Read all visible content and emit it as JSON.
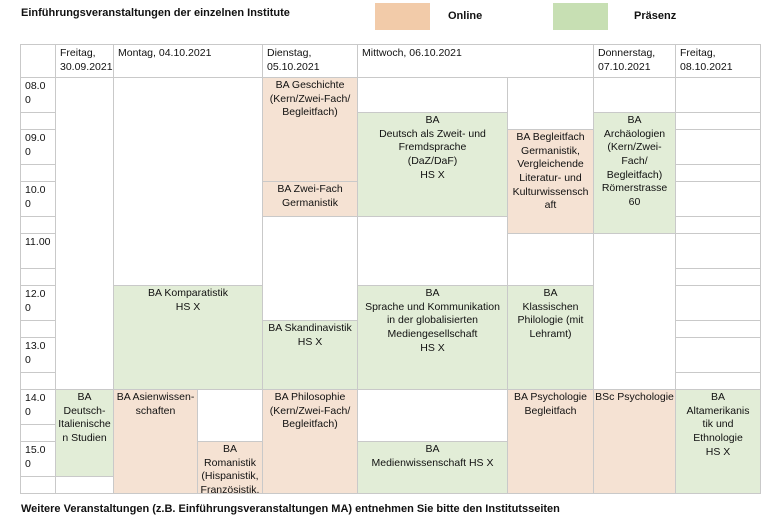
{
  "title": "Einführungsveranstaltungen der einzelnen Institute",
  "footer": "Weitere Veranstaltungen (z.B. Einführungsveranstaltungen MA) entnehmen Sie bitte den Institutsseiten",
  "legend": {
    "online_label": "Online",
    "praesenz_label": "Präsenz"
  },
  "colors": {
    "legend_online": "#F2CBA9",
    "legend_praesenz": "#C7DFB3",
    "online_cell": "#F5E2D3",
    "praesenz_cell": "#E2EDD7",
    "grid": "#C9C9C9"
  },
  "time_rows": [
    "08.00",
    "09.00",
    "10.00",
    "11.00",
    "12.00",
    "13.00",
    "14.00",
    "15.00"
  ],
  "columns": [
    {
      "label": "Freitag, 30.09.2021",
      "span": 1
    },
    {
      "label": "Montag, 04.10.2021",
      "span": 2
    },
    {
      "label": "Dienstag, 05.10.2021",
      "span": 1
    },
    {
      "label": "Mittwoch, 06.10.2021",
      "span": 2
    },
    {
      "label": "Donnerstag, 07.10.2021",
      "span": 1
    },
    {
      "label": "Freitag, 08.10.2021",
      "span": 1
    }
  ],
  "events": [
    {
      "label": "BA Geschichte\n(Kern/Zwei-Fach/\nBegleitfach)",
      "mode": "online",
      "col": 5,
      "colspan": 1,
      "row": 0,
      "rowspan": 4
    },
    {
      "label": "BA Zwei-Fach\nGermanistik",
      "mode": "online",
      "col": 5,
      "colspan": 1,
      "row": 4,
      "rowspan": 1
    },
    {
      "label": "BA Skandinavistik\nHS X",
      "mode": "praesenz",
      "col": 5,
      "colspan": 1,
      "row": 9,
      "rowspan": 3
    },
    {
      "label": "BA Philosophie\n(Kern/Zwei-Fach/\nBegleitfach)",
      "mode": "online",
      "col": 5,
      "colspan": 1,
      "row": 12,
      "rowspan": 4
    },
    {
      "label": "BA Komparatistik\nHS X",
      "mode": "praesenz",
      "col": 3,
      "colspan": 2,
      "row": 8,
      "rowspan": 4
    },
    {
      "label": "BA Asienwissen-\nschaften",
      "mode": "online",
      "col": 3,
      "colspan": 1,
      "row": 12,
      "rowspan": 4
    },
    {
      "label": "BA\nRomanistik\n(Hispanistik,\nFranzösistik,",
      "mode": "online",
      "col": 4,
      "colspan": 1,
      "row": 14,
      "rowspan": 2
    },
    {
      "label": "BA\nDeutsch-\nItalienische\nn Studien",
      "mode": "praesenz",
      "col": 2,
      "colspan": 1,
      "row": 12,
      "rowspan": 3
    },
    {
      "label": "BA\nDeutsch als Zweit- und\nFremdsprache\n(DaZ/DaF)\nHS X",
      "mode": "praesenz",
      "col": 6,
      "colspan": 1,
      "row": 1,
      "rowspan": 4
    },
    {
      "label": "BA\nSprache und Kommunikation\nin der globalisierten\nMediengesellschaft\nHS X",
      "mode": "praesenz",
      "col": 6,
      "colspan": 1,
      "row": 8,
      "rowspan": 4
    },
    {
      "label": "BA\nMedienwissenschaft HS X",
      "mode": "praesenz",
      "col": 6,
      "colspan": 1,
      "row": 14,
      "rowspan": 2
    },
    {
      "label": "BA Begleitfach\nGermanistik,\nVergleichende\nLiteratur- und\nKulturwissensch\naft",
      "mode": "online",
      "col": 7,
      "colspan": 1,
      "row": 2,
      "rowspan": 4
    },
    {
      "label": "BA\nKlassischen\nPhilologie (mit\nLehramt)",
      "mode": "praesenz",
      "col": 7,
      "colspan": 1,
      "row": 8,
      "rowspan": 4
    },
    {
      "label": "BA Psychologie\nBegleitfach",
      "mode": "online",
      "col": 7,
      "colspan": 1,
      "row": 12,
      "rowspan": 4
    },
    {
      "label": "BA\nArchäologien\n(Kern/Zwei-\nFach/\nBegleitfach)\nRömerstrasse\n60",
      "mode": "praesenz",
      "col": 8,
      "colspan": 1,
      "row": 1,
      "rowspan": 5
    },
    {
      "label": "BSc Psychologie",
      "mode": "online",
      "col": 8,
      "colspan": 1,
      "row": 12,
      "rowspan": 4
    },
    {
      "label": "BA\nAltamerikanis\ntik und\nEthnologie\nHS X",
      "mode": "praesenz",
      "col": 9,
      "colspan": 1,
      "row": 12,
      "rowspan": 4
    }
  ]
}
